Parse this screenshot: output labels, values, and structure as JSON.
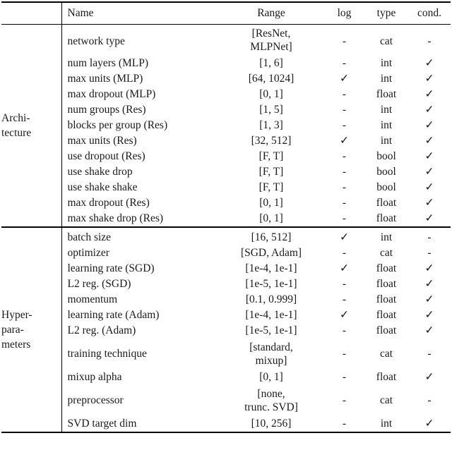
{
  "table": {
    "headers": {
      "name": "Name",
      "range": "Range",
      "log": "log",
      "type": "type",
      "cond": "cond."
    },
    "symbols": {
      "check": "✓",
      "dash": "-"
    },
    "groups": [
      {
        "label": [
          "Archi-",
          "tecture"
        ],
        "rows": [
          {
            "name": "network type",
            "range": [
              "[ResNet,",
              "MLPNet]"
            ],
            "log": "-",
            "type": "cat",
            "cond": "-"
          },
          {
            "name": "num layers (MLP)",
            "range": "[1, 6]",
            "log": "-",
            "type": "int",
            "cond": "✓"
          },
          {
            "name": "max units (MLP)",
            "range": "[64, 1024]",
            "log": "✓",
            "type": "int",
            "cond": "✓"
          },
          {
            "name": "max dropout (MLP)",
            "range": "[0, 1]",
            "log": "-",
            "type": "float",
            "cond": "✓"
          },
          {
            "name": "num groups (Res)",
            "range": "[1, 5]",
            "log": "-",
            "type": "int",
            "cond": "✓"
          },
          {
            "name": "blocks per group (Res)",
            "range": "[1, 3]",
            "log": "-",
            "type": "int",
            "cond": "✓"
          },
          {
            "name": "max units (Res)",
            "range": "[32, 512]",
            "log": "✓",
            "type": "int",
            "cond": "✓"
          },
          {
            "name": "use dropout (Res)",
            "range": "[F, T]",
            "log": "-",
            "type": "bool",
            "cond": "✓"
          },
          {
            "name": "use shake drop",
            "range": "[F, T]",
            "log": "-",
            "type": "bool",
            "cond": "✓"
          },
          {
            "name": "use shake shake",
            "range": "[F, T]",
            "log": "-",
            "type": "bool",
            "cond": "✓"
          },
          {
            "name": "max dropout (Res)",
            "range": "[0, 1]",
            "log": "-",
            "type": "float",
            "cond": "✓"
          },
          {
            "name": "max shake drop (Res)",
            "range": "[0, 1]",
            "log": "-",
            "type": "float",
            "cond": "✓"
          }
        ]
      },
      {
        "label": [
          "Hyper-",
          "para-",
          "meters"
        ],
        "rows": [
          {
            "name": "batch size",
            "range": "[16, 512]",
            "log": "✓",
            "type": "int",
            "cond": "-"
          },
          {
            "name": "optimizer",
            "range": "[SGD, Adam]",
            "log": "-",
            "type": "cat",
            "cond": "-"
          },
          {
            "name": "learning rate (SGD)",
            "range": "[1e-4, 1e-1]",
            "log": "✓",
            "type": "float",
            "cond": "✓"
          },
          {
            "name": "L2 reg. (SGD)",
            "range": "[1e-5, 1e-1]",
            "log": "-",
            "type": "float",
            "cond": "✓"
          },
          {
            "name": "momentum",
            "range": "[0.1, 0.999]",
            "log": "-",
            "type": "float",
            "cond": "✓"
          },
          {
            "name": "learning rate (Adam)",
            "range": "[1e-4, 1e-1]",
            "log": "✓",
            "type": "float",
            "cond": "✓"
          },
          {
            "name": "L2 reg. (Adam)",
            "range": "[1e-5, 1e-1]",
            "log": "-",
            "type": "float",
            "cond": "✓"
          },
          {
            "name": "training technique",
            "range": [
              "[standard,",
              "mixup]"
            ],
            "log": "-",
            "type": "cat",
            "cond": "-"
          },
          {
            "name": "mixup alpha",
            "range": "[0, 1]",
            "log": "-",
            "type": "float",
            "cond": "✓"
          },
          {
            "name": "preprocessor",
            "range": [
              "[none,",
              "trunc. SVD]"
            ],
            "log": "-",
            "type": "cat",
            "cond": "-"
          },
          {
            "name": "SVD target dim",
            "range": "[10, 256]",
            "log": "-",
            "type": "int",
            "cond": "✓"
          }
        ]
      }
    ]
  }
}
